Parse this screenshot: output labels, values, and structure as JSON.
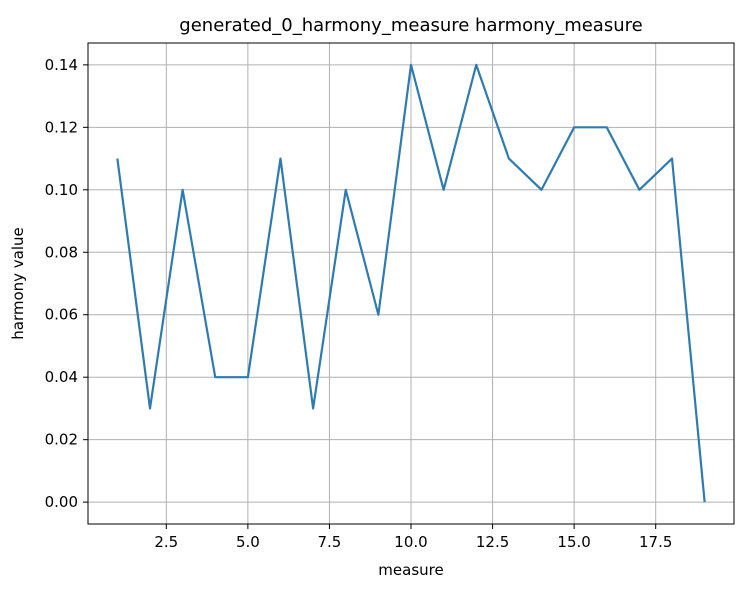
{
  "chart_data": {
    "type": "line",
    "title": "generated_0_harmony_measure harmony_measure",
    "xlabel": "measure",
    "ylabel": "harmony value",
    "x": [
      1,
      2,
      3,
      4,
      5,
      6,
      7,
      8,
      9,
      10,
      11,
      12,
      13,
      14,
      15,
      16,
      17,
      18,
      19
    ],
    "series": [
      {
        "values": [
          0.11,
          0.03,
          0.1,
          0.04,
          0.04,
          0.11,
          0.03,
          0.1,
          0.06,
          0.14,
          0.1,
          0.14,
          0.11,
          0.1,
          0.12,
          0.12,
          0.1,
          0.11,
          0.0
        ]
      }
    ],
    "xlim": [
      0.1,
      19.9
    ],
    "ylim": [
      -0.007,
      0.147
    ],
    "xticks": [
      2.5,
      5.0,
      7.5,
      10.0,
      12.5,
      15.0,
      17.5
    ],
    "xtick_labels": [
      "2.5",
      "5.0",
      "7.5",
      "10.0",
      "12.5",
      "15.0",
      "17.5"
    ],
    "yticks": [
      0.0,
      0.02,
      0.04,
      0.06,
      0.08,
      0.1,
      0.12,
      0.14
    ],
    "ytick_labels": [
      "0.00",
      "0.02",
      "0.04",
      "0.06",
      "0.08",
      "0.10",
      "0.12",
      "0.14"
    ],
    "grid": true,
    "line_color": "#2e7bb0",
    "grid_color": "#b0b0b0"
  }
}
